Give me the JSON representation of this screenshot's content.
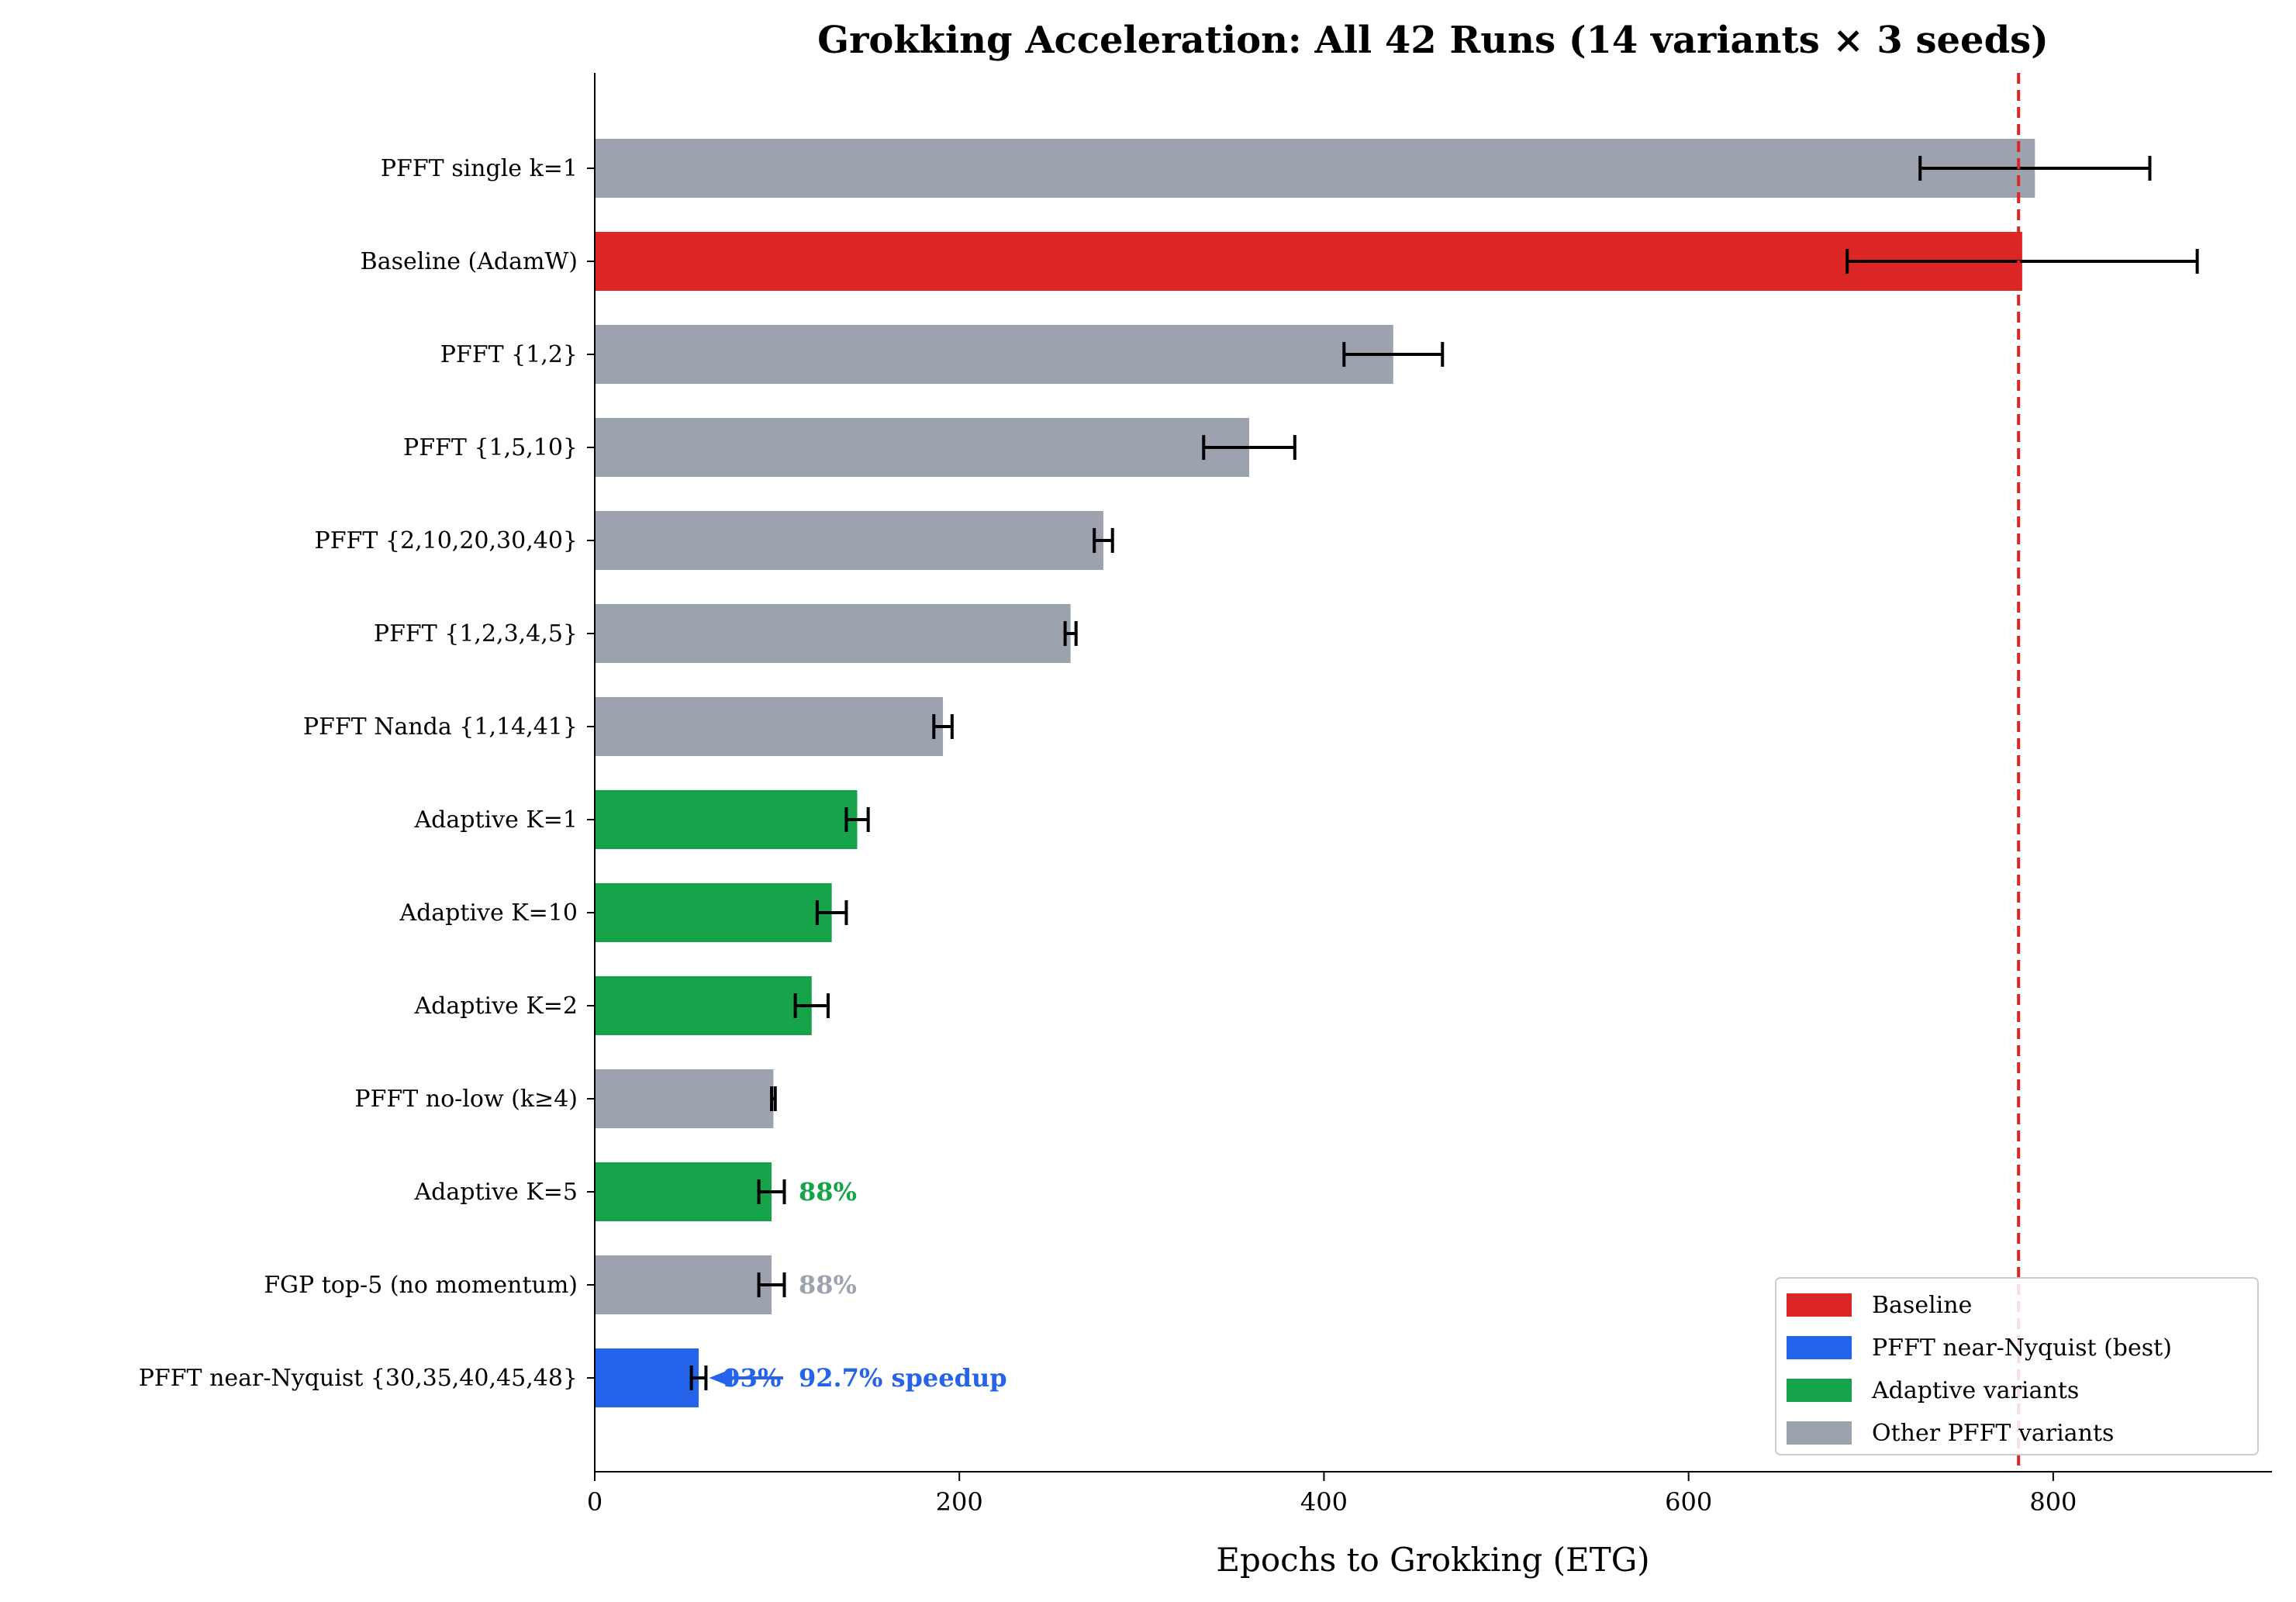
{
  "chart_data": {
    "type": "bar",
    "orientation": "horizontal",
    "title": "Grokking Acceleration: All 42 Runs (14 variants × 3 seeds)",
    "xlabel": "Epochs to Grokking (ETG)",
    "ylabel": "",
    "xlim": [
      0,
      920
    ],
    "xticks": [
      0,
      200,
      400,
      600,
      800
    ],
    "grid": false,
    "reference_line": {
      "x": 781,
      "style": "dashed",
      "color": "#dc2626"
    },
    "colors": {
      "Baseline": "#dc2626",
      "Best": "#2563eb",
      "Adaptive": "#16a34a",
      "Other": "#9ca3af"
    },
    "categories": [
      "PFFT single k=1",
      "Baseline (AdamW)",
      "PFFT {1,2}",
      "PFFT {1,5,10}",
      "PFFT {2,10,20,30,40}",
      "PFFT {1,2,3,4,5}",
      "PFFT Nanda {1,14,41}",
      "Adaptive K=1",
      "Adaptive K=10",
      "Adaptive K=2",
      "PFFT no-low (k≥4)",
      "Adaptive K=5",
      "FGP top-5 (no momentum)",
      "PFFT near-Nyquist {30,35,40,45,48}"
    ],
    "values": [
      790,
      783,
      438,
      359,
      279,
      261,
      191,
      144,
      130,
      119,
      98,
      97,
      97,
      57
    ],
    "errors": [
      63,
      96,
      27,
      25,
      5,
      3,
      5,
      6,
      8,
      9,
      1,
      7,
      7,
      4
    ],
    "groups": [
      "Other",
      "Baseline",
      "Other",
      "Other",
      "Other",
      "Other",
      "Other",
      "Adaptive",
      "Adaptive",
      "Adaptive",
      "Other",
      "Adaptive",
      "Other",
      "Best"
    ],
    "annotations": [
      {
        "category": "Adaptive K=5",
        "text": "88%",
        "color": "#16a34a"
      },
      {
        "category": "FGP top-5 (no momentum)",
        "text": "88%",
        "color": "#9ca3af"
      },
      {
        "category": "PFFT near-Nyquist {30,35,40,45,48}",
        "text": "93%",
        "color": "#2563eb"
      },
      {
        "category": "PFFT near-Nyquist {30,35,40,45,48}",
        "text": "92.7% speedup",
        "color": "#2563eb",
        "arrow": true
      }
    ],
    "legend": {
      "placement": "lower-right",
      "entries": [
        {
          "label": "Baseline",
          "group": "Baseline"
        },
        {
          "label": "PFFT near-Nyquist (best)",
          "group": "Best"
        },
        {
          "label": "Adaptive variants",
          "group": "Adaptive"
        },
        {
          "label": "Other PFFT variants",
          "group": "Other"
        }
      ]
    }
  }
}
